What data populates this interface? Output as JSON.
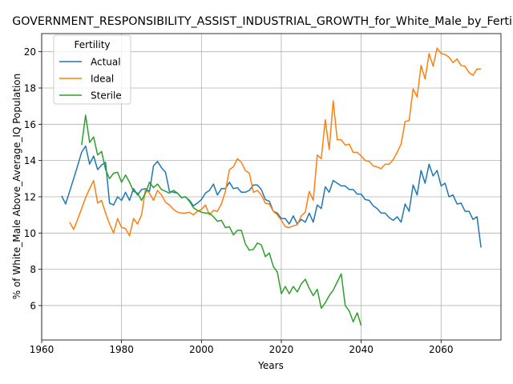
{
  "colors": {
    "actual": "#1f77b4",
    "ideal": "#ff7f0e",
    "sterile": "#2ca02c",
    "grid": "#b0b0b0"
  },
  "chart_data": {
    "type": "line",
    "title": "GOVERNMENT_RESPONSIBILITY_ASSIST_INDUSTRIAL_GROWTH_for_White_Male_by_Fertility",
    "xlabel": "Years",
    "ylabel": "% of White_Male Above_Average_IQ Population",
    "xlim": [
      1960,
      2075
    ],
    "ylim": [
      4.1,
      21.0
    ],
    "xticks": [
      1960,
      1980,
      2000,
      2020,
      2040,
      2060
    ],
    "yticks": [
      6,
      8,
      10,
      12,
      14,
      16,
      18,
      20
    ],
    "grid": true,
    "legend": {
      "title": "Fertility",
      "placement": "top-left"
    },
    "series": [
      {
        "name": "Actual",
        "color": "#1f77b4",
        "x": [
          1965,
          1966,
          1967,
          1968,
          1969,
          1970,
          1971,
          1972,
          1973,
          1974,
          1975,
          1976,
          1977,
          1978,
          1979,
          1980,
          1981,
          1982,
          1983,
          1984,
          1985,
          1986,
          1987,
          1988,
          1989,
          1990,
          1991,
          1992,
          1993,
          1994,
          1995,
          1996,
          1997,
          1998,
          1999,
          2000,
          2001,
          2002,
          2003,
          2004,
          2005,
          2006,
          2007,
          2008,
          2009,
          2010,
          2011,
          2012,
          2013,
          2014,
          2015,
          2016,
          2017,
          2018,
          2019,
          2020,
          2021,
          2022,
          2023,
          2024,
          2025,
          2026,
          2027,
          2028,
          2029,
          2030,
          2031,
          2032,
          2033,
          2034,
          2035,
          2036,
          2037,
          2038,
          2039,
          2040,
          2041,
          2042,
          2043,
          2044,
          2045,
          2046,
          2047,
          2048,
          2049,
          2050,
          2051,
          2052,
          2053,
          2054,
          2055,
          2056,
          2057,
          2058,
          2059,
          2060,
          2061,
          2062,
          2063,
          2064,
          2065,
          2066,
          2067,
          2068,
          2069,
          2070
        ],
        "values": [
          12.05,
          11.6,
          12.3,
          13.0,
          13.7,
          14.45,
          14.8,
          13.8,
          14.25,
          13.5,
          13.75,
          13.9,
          11.65,
          11.55,
          12.0,
          11.8,
          12.25,
          11.8,
          12.45,
          12.1,
          12.4,
          12.45,
          12.3,
          13.7,
          13.95,
          13.6,
          13.35,
          12.3,
          12.25,
          12.2,
          11.95,
          12.0,
          11.8,
          11.5,
          11.65,
          11.85,
          12.2,
          12.35,
          12.7,
          12.1,
          12.45,
          12.45,
          12.8,
          12.45,
          12.5,
          12.25,
          12.25,
          12.35,
          12.65,
          12.65,
          12.4,
          11.85,
          11.75,
          11.2,
          11.1,
          10.8,
          10.8,
          10.5,
          10.95,
          10.5,
          10.75,
          10.6,
          11.1,
          10.6,
          11.55,
          11.35,
          12.55,
          12.25,
          12.9,
          12.75,
          12.6,
          12.6,
          12.4,
          12.4,
          12.15,
          12.15,
          11.85,
          11.8,
          11.5,
          11.35,
          11.1,
          11.1,
          10.85,
          10.7,
          10.9,
          10.6,
          11.6,
          11.2,
          12.65,
          12.1,
          13.45,
          12.75,
          13.8,
          13.15,
          13.45,
          12.6,
          12.75,
          12.0,
          12.1,
          11.6,
          11.65,
          11.2,
          11.2,
          10.75,
          10.9,
          9.2
        ]
      },
      {
        "name": "Ideal",
        "color": "#ff7f0e",
        "x": [
          1967,
          1968,
          1969,
          1970,
          1971,
          1972,
          1973,
          1974,
          1975,
          1976,
          1977,
          1978,
          1979,
          1980,
          1981,
          1982,
          1983,
          1984,
          1985,
          1986,
          1987,
          1988,
          1989,
          1990,
          1991,
          1992,
          1993,
          1994,
          1995,
          1996,
          1997,
          1998,
          1999,
          2000,
          2001,
          2002,
          2003,
          2004,
          2005,
          2006,
          2007,
          2008,
          2009,
          2010,
          2011,
          2012,
          2013,
          2014,
          2015,
          2016,
          2017,
          2018,
          2019,
          2020,
          2021,
          2022,
          2023,
          2024,
          2025,
          2026,
          2027,
          2028,
          2029,
          2030,
          2031,
          2032,
          2033,
          2034,
          2035,
          2036,
          2037,
          2038,
          2039,
          2040,
          2041,
          2042,
          2043,
          2044,
          2045,
          2046,
          2047,
          2048,
          2049,
          2050,
          2051,
          2052,
          2053,
          2054,
          2055,
          2056,
          2057,
          2058,
          2059,
          2060,
          2061,
          2062,
          2063,
          2064,
          2065,
          2066,
          2067,
          2068,
          2069,
          2070
        ],
        "values": [
          10.6,
          10.2,
          10.75,
          11.35,
          11.95,
          12.45,
          12.9,
          11.65,
          11.8,
          11.1,
          10.5,
          10.0,
          10.8,
          10.3,
          10.25,
          9.85,
          10.8,
          10.5,
          11.0,
          12.4,
          12.2,
          11.8,
          12.35,
          12.1,
          11.7,
          11.55,
          11.3,
          11.15,
          11.1,
          11.1,
          11.15,
          11.0,
          11.2,
          11.3,
          11.55,
          11.0,
          11.25,
          11.2,
          11.6,
          12.3,
          13.5,
          13.65,
          14.1,
          13.9,
          13.45,
          13.3,
          12.25,
          12.35,
          12.1,
          11.65,
          11.6,
          11.2,
          11.0,
          10.7,
          10.35,
          10.3,
          10.4,
          10.45,
          10.95,
          11.15,
          12.3,
          11.8,
          14.3,
          14.1,
          16.25,
          14.6,
          17.3,
          15.15,
          15.15,
          14.85,
          14.9,
          14.45,
          14.45,
          14.25,
          14.0,
          13.95,
          13.7,
          13.65,
          13.55,
          13.8,
          13.8,
          14.05,
          14.45,
          14.9,
          16.15,
          16.2,
          17.95,
          17.5,
          19.25,
          18.5,
          19.9,
          19.2,
          20.2,
          19.9,
          19.85,
          19.7,
          19.4,
          19.6,
          19.25,
          19.2,
          18.85,
          18.7,
          19.05,
          19.05
        ]
      },
      {
        "name": "Sterile",
        "color": "#2ca02c",
        "x": [
          1970,
          1971,
          1972,
          1973,
          1974,
          1975,
          1976,
          1977,
          1978,
          1979,
          1980,
          1981,
          1982,
          1983,
          1984,
          1985,
          1986,
          1987,
          1988,
          1989,
          1990,
          1991,
          1992,
          1993,
          1994,
          1995,
          1996,
          1997,
          1998,
          1999,
          2000,
          2001,
          2002,
          2003,
          2004,
          2005,
          2006,
          2007,
          2008,
          2009,
          2010,
          2011,
          2012,
          2013,
          2014,
          2015,
          2016,
          2017,
          2018,
          2019,
          2020,
          2021,
          2022,
          2023,
          2024,
          2025,
          2026,
          2027,
          2028,
          2029,
          2030,
          2031,
          2032,
          2033,
          2034,
          2035,
          2036,
          2037,
          2038,
          2039,
          2040
        ],
        "values": [
          14.85,
          16.5,
          15.0,
          15.3,
          14.3,
          14.5,
          13.5,
          13.0,
          13.3,
          13.35,
          12.8,
          13.2,
          12.8,
          12.3,
          12.2,
          11.8,
          12.2,
          12.8,
          12.5,
          12.7,
          12.4,
          12.3,
          12.2,
          12.35,
          12.2,
          11.95,
          12.0,
          11.75,
          11.4,
          11.25,
          11.15,
          11.1,
          11.1,
          10.9,
          10.65,
          10.7,
          10.3,
          10.35,
          9.9,
          10.15,
          10.15,
          9.4,
          9.05,
          9.1,
          9.45,
          9.35,
          8.7,
          8.9,
          8.15,
          7.85,
          6.65,
          7.05,
          6.65,
          7.05,
          6.75,
          7.2,
          7.45,
          6.95,
          6.55,
          6.9,
          5.85,
          6.15,
          6.55,
          6.85,
          7.3,
          7.75,
          6.0,
          5.7,
          5.1,
          5.6,
          4.9
        ]
      }
    ]
  }
}
